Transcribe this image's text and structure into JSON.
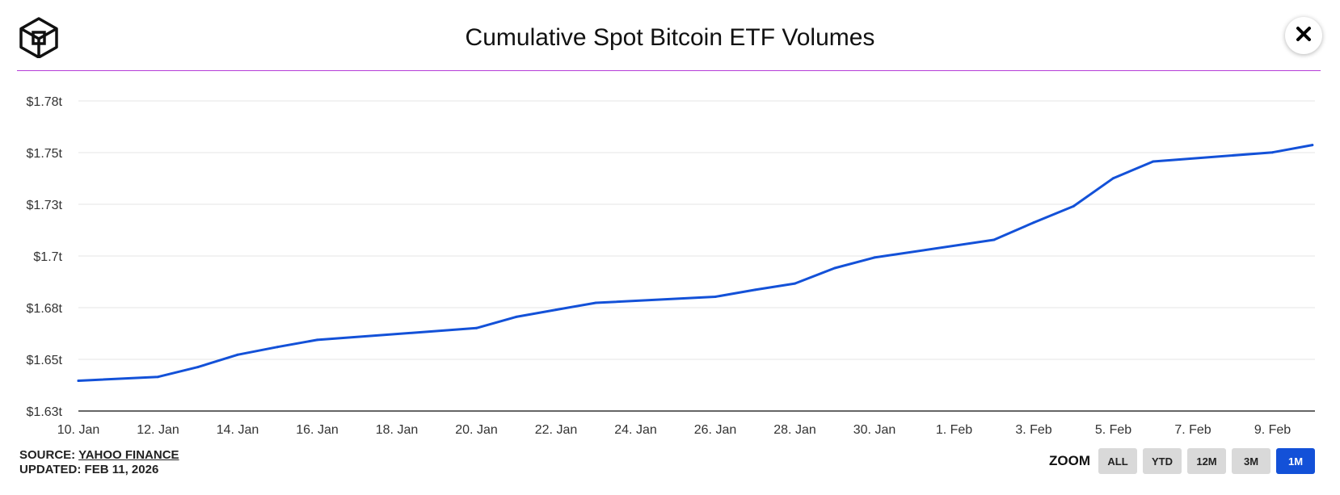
{
  "title": "Cumulative Spot Bitcoin ETF Volumes",
  "icons": {
    "logo": "cube-logo-icon",
    "close": "close-icon"
  },
  "colors": {
    "line": "#1351d8",
    "rule": "#b43cd8",
    "zoom_active": "#1351d8",
    "zoom_inactive": "#d9d9d9",
    "grid": "#e6e6e6"
  },
  "source": {
    "label": "SOURCE:",
    "link": "YAHOO FINANCE",
    "updated": "UPDATED: FEB 11, 2026"
  },
  "zoom": {
    "label": "ZOOM",
    "buttons": [
      {
        "label": "ALL",
        "active": false
      },
      {
        "label": "YTD",
        "active": false
      },
      {
        "label": "12M",
        "active": false
      },
      {
        "label": "3M",
        "active": false
      },
      {
        "label": "1M",
        "active": true
      }
    ]
  },
  "chart_data": {
    "type": "line",
    "title": "Cumulative Spot Bitcoin ETF Volumes",
    "xlabel": "",
    "ylabel": "",
    "grid": true,
    "ylim": [
      1.625,
      1.7775
    ],
    "y_ticks": [
      "$1.63t",
      "$1.65t",
      "$1.68t",
      "$1.7t",
      "$1.73t",
      "$1.75t",
      "$1.78t"
    ],
    "x_ticks": [
      "10. Jan",
      "12. Jan",
      "14. Jan",
      "16. Jan",
      "18. Jan",
      "20. Jan",
      "22. Jan",
      "24. Jan",
      "26. Jan",
      "28. Jan",
      "30. Jan",
      "1. Feb",
      "3. Feb",
      "5. Feb",
      "7. Feb",
      "9. Feb"
    ],
    "x_range": [
      "2026-01-10",
      "2026-02-10"
    ],
    "series": [
      {
        "points": [
          {
            "x": "2026-01-10",
            "y": 1.6399
          },
          {
            "x": "2026-01-12",
            "y": 1.6418
          },
          {
            "x": "2026-01-13",
            "y": 1.6466
          },
          {
            "x": "2026-01-14",
            "y": 1.6527
          },
          {
            "x": "2026-01-15",
            "y": 1.6565
          },
          {
            "x": "2026-01-16",
            "y": 1.66
          },
          {
            "x": "2026-01-20",
            "y": 1.6658
          },
          {
            "x": "2026-01-21",
            "y": 1.6713
          },
          {
            "x": "2026-01-22",
            "y": 1.6748
          },
          {
            "x": "2026-01-23",
            "y": 1.6782
          },
          {
            "x": "2026-01-26",
            "y": 1.6812
          },
          {
            "x": "2026-01-27",
            "y": 1.6846
          },
          {
            "x": "2026-01-28",
            "y": 1.6877
          },
          {
            "x": "2026-01-29",
            "y": 1.6953
          },
          {
            "x": "2026-01-30",
            "y": 1.7005
          },
          {
            "x": "2026-02-02",
            "y": 1.7092
          },
          {
            "x": "2026-02-03",
            "y": 1.7177
          },
          {
            "x": "2026-02-04",
            "y": 1.7257
          },
          {
            "x": "2026-02-05",
            "y": 1.7395
          },
          {
            "x": "2026-02-06",
            "y": 1.7477
          },
          {
            "x": "2026-02-09",
            "y": 1.7522
          },
          {
            "x": "2026-02-10",
            "y": 1.7558
          }
        ]
      }
    ]
  }
}
